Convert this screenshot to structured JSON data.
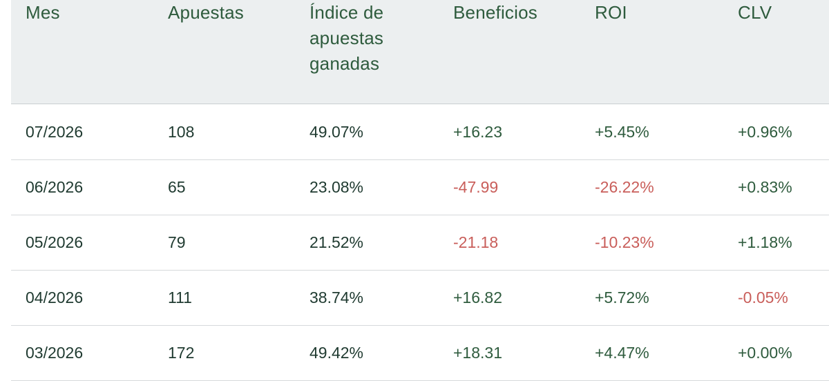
{
  "columns": [
    "Mes",
    "Apuestas",
    "Índice de apuestas ganadas",
    "Beneficios",
    "ROI",
    "CLV"
  ],
  "header_lines": {
    "mes": "Mes",
    "apuestas": "Apuestas",
    "indice_1": "Índice de",
    "indice_2": "apuestas",
    "indice_3": "ganadas",
    "beneficios": "Beneficios",
    "roi": "ROI",
    "clv": "CLV"
  },
  "rows": [
    {
      "mes": "07/2026",
      "apuestas": "108",
      "indice": "49.07%",
      "beneficios": "+16.23",
      "roi": "+5.45%",
      "clv": "+0.96%"
    },
    {
      "mes": "06/2026",
      "apuestas": "65",
      "indice": "23.08%",
      "beneficios": "-47.99",
      "roi": "-26.22%",
      "clv": "+0.83%"
    },
    {
      "mes": "05/2026",
      "apuestas": "79",
      "indice": "21.52%",
      "beneficios": "-21.18",
      "roi": "-10.23%",
      "clv": "+1.18%"
    },
    {
      "mes": "04/2026",
      "apuestas": "111",
      "indice": "38.74%",
      "beneficios": "+16.82",
      "roi": "+5.72%",
      "clv": "-0.05%"
    },
    {
      "mes": "03/2026",
      "apuestas": "172",
      "indice": "49.42%",
      "beneficios": "+18.31",
      "roi": "+4.47%",
      "clv": "+0.00%"
    }
  ],
  "colors": {
    "header_bg": "#eceff0",
    "header_text": "#2e5b3d",
    "positive": "#2e5b3d",
    "negative": "#c95e5a",
    "body_text": "#1f3a30"
  }
}
